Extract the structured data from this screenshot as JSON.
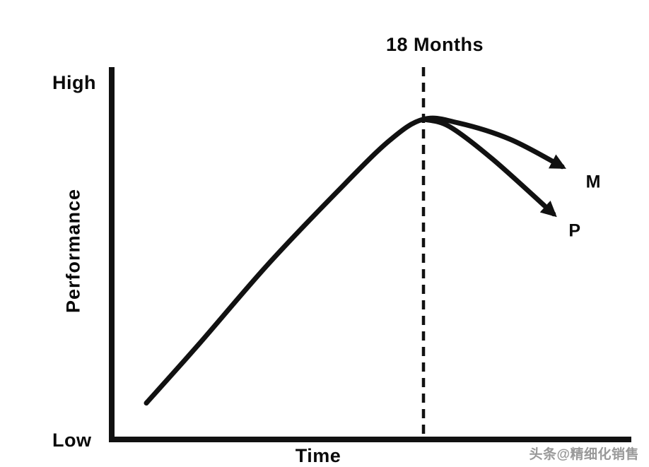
{
  "chart_data": {
    "type": "line",
    "title": "",
    "xlabel": "Time",
    "ylabel": "Performance",
    "y_tick_labels": [
      "Low",
      "High"
    ],
    "x_tick_labels": [],
    "xlim": [
      0,
      30
    ],
    "ylim": [
      0,
      100
    ],
    "grid": false,
    "legend_position": "inline-at-line-end",
    "annotation": {
      "label": "18 Months",
      "x": 18,
      "style": "dashed-vertical-line"
    },
    "series": [
      {
        "name": "M",
        "points": [
          [
            2,
            10
          ],
          [
            5,
            26
          ],
          [
            9,
            48
          ],
          [
            13,
            68
          ],
          [
            16,
            82
          ],
          [
            18,
            88
          ],
          [
            20,
            87
          ],
          [
            23,
            82.5
          ],
          [
            26,
            75
          ]
        ]
      },
      {
        "name": "P",
        "points": [
          [
            18,
            88
          ],
          [
            19.5,
            86
          ],
          [
            22,
            77
          ],
          [
            25.5,
            62
          ]
        ]
      }
    ]
  },
  "labels": {
    "high": "High",
    "low": "Low",
    "performance": "Performance",
    "time": "Time",
    "months": "18 Months",
    "series_m": "M",
    "series_p": "P"
  },
  "watermark": {
    "text": "头条@精细化销售"
  },
  "colors": {
    "line": "#111111",
    "axis": "#111111",
    "dashed": "#111111",
    "watermark": "#999999",
    "background": "#ffffff"
  }
}
